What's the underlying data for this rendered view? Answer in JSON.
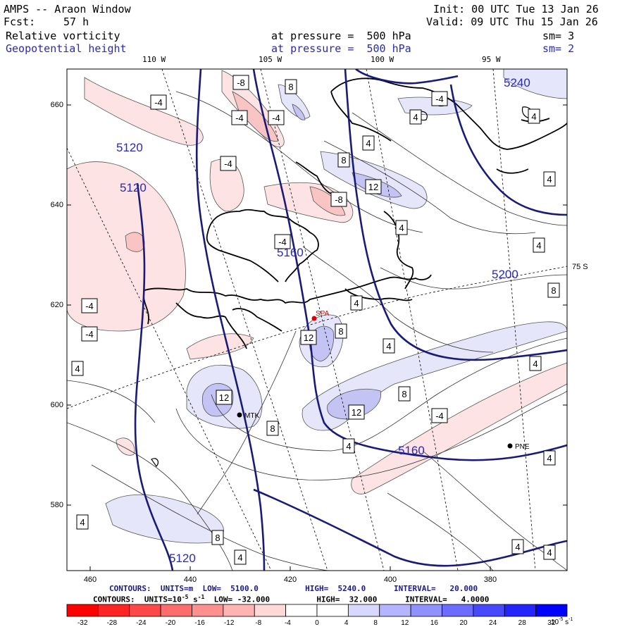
{
  "header": {
    "title": "AMPS -- Araon Window",
    "fcst_label": "Fcst:",
    "fcst_value": "57 h",
    "init": "Init: 00 UTC Tue 13 Jan 26",
    "valid": "Valid: 09 UTC Thu 15 Jan 26",
    "field1": {
      "name": "Relative vorticity",
      "level": "at pressure =  500 hPa",
      "sm": "sm= 3"
    },
    "field2": {
      "name": "Geopotential height",
      "level": "at pressure =  500 hPa",
      "sm": "sm= 2"
    }
  },
  "longitude_labels": [
    "110 W",
    "105 W",
    "100 W",
    "95 W"
  ],
  "latitude_label": "75 S",
  "y_ticks": [
    "660",
    "640",
    "620",
    "600",
    "580"
  ],
  "x_ticks": [
    "460",
    "440",
    "420",
    "400",
    "380"
  ],
  "stations": [
    {
      "id": "SPA",
      "color": "#dd0000"
    },
    {
      "id": "MTK",
      "color": "#000000"
    },
    {
      "id": "PNE",
      "color": "#000000"
    }
  ],
  "height_labels": [
    "5240",
    "5120",
    "5120",
    "5160",
    "5200",
    "5160",
    "5120"
  ],
  "vorticity_labels": [
    "-4",
    "-8",
    "-4",
    "-4",
    "8",
    "4",
    "-4",
    "8",
    "4",
    "12",
    "-8",
    "4",
    "8",
    "-4",
    "4",
    "4",
    "4",
    "-4",
    "-4",
    "4",
    "12",
    "8",
    "4",
    "8",
    "12",
    "8",
    "-4",
    "12",
    "4",
    "8",
    "4",
    "4",
    "4",
    "4",
    "4",
    "4",
    "4",
    "-4"
  ],
  "contours_line1": {
    "text": "CONTOURS:  UNITS=m  LOW=  5100.0          HIGH=  5240.0      INTERVAL=   20.000"
  },
  "contours_line2": {
    "prefix": "CONTOURS:  UNITS=10",
    "exp": "-5",
    "unit": " s",
    "unit_exp": "-1",
    "rest": "  LOW= -32.000          HIGH=  32.000      INTERVAL=   4.0000"
  },
  "colorbar": {
    "labels": [
      "-32",
      "-28",
      "-24",
      "-20",
      "-16",
      "-12",
      "-8",
      "-4",
      "0",
      "4",
      "8",
      "12",
      "16",
      "20",
      "24",
      "28",
      "32"
    ],
    "colors": [
      "#ff0000",
      "#ff2424",
      "#ff4848",
      "#ff6c6c",
      "#ff9090",
      "#ffb4b4",
      "#ffd8d8",
      "#ffffff",
      "#ffffff",
      "#d8d8ff",
      "#b4b4ff",
      "#9090ff",
      "#6c6cff",
      "#4848ff",
      "#2424ff",
      "#0000ff"
    ],
    "units": "10",
    "units_exp": "-5",
    "units_suffix": " s",
    "units_suffix_exp": "-1"
  }
}
